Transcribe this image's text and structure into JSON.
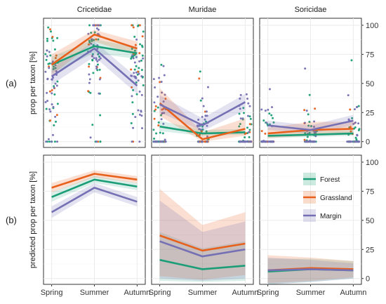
{
  "figure": {
    "row_tags": [
      "(a)",
      "(b)"
    ],
    "facets": [
      "Cricetidae",
      "Muridae",
      "Soricidae"
    ],
    "colors": {
      "Forest": "#1b9e77",
      "Grassland": "#e7601c",
      "Margin": "#7570b3"
    },
    "legend": {
      "entries": [
        "Forest",
        "Grassland",
        "Margin"
      ]
    }
  },
  "chart_data": [
    {
      "type": "scatter",
      "row": "(a)",
      "ylabel": "prop per taxon [%]",
      "categories": [
        "Spring",
        "Summer",
        "Autumn"
      ],
      "y_ticks": [
        0,
        25,
        50,
        75,
        100
      ],
      "ylim": [
        -5,
        106
      ],
      "grid": true,
      "facets": [
        {
          "name": "Cricetidae",
          "series": [
            {
              "name": "Forest",
              "values": [
                66,
                82,
                76
              ],
              "ci_low": [
                59,
                76,
                71
              ],
              "ci_high": [
                73,
                88,
                81
              ]
            },
            {
              "name": "Grassland",
              "values": [
                66,
                92,
                80
              ],
              "ci_low": [
                57,
                86,
                74
              ],
              "ci_high": [
                75,
                96,
                86
              ]
            },
            {
              "name": "Margin",
              "values": [
                56,
                80,
                48
              ],
              "ci_low": [
                49,
                73,
                41
              ],
              "ci_high": [
                63,
                86,
                55
              ]
            }
          ]
        },
        {
          "name": "Muridae",
          "series": [
            {
              "name": "Forest",
              "values": [
                13,
                7,
                8
              ],
              "ci_low": [
                9,
                5,
                6
              ],
              "ci_high": [
                18,
                10,
                11
              ]
            },
            {
              "name": "Grassland",
              "values": [
                33,
                2,
                11
              ],
              "ci_low": [
                22,
                0,
                5
              ],
              "ci_high": [
                46,
                8,
                20
              ]
            },
            {
              "name": "Margin",
              "values": [
                32,
                14,
                34
              ],
              "ci_low": [
                25,
                9,
                27
              ],
              "ci_high": [
                40,
                20,
                41
              ]
            }
          ]
        },
        {
          "name": "Soricidae",
          "series": [
            {
              "name": "Forest",
              "values": [
                5,
                6,
                7
              ],
              "ci_low": [
                3,
                4,
                5
              ],
              "ci_high": [
                8,
                9,
                10
              ]
            },
            {
              "name": "Grassland",
              "values": [
                7,
                10,
                11
              ],
              "ci_low": [
                3,
                5,
                6
              ],
              "ci_high": [
                12,
                17,
                17
              ]
            },
            {
              "name": "Margin",
              "values": [
                14,
                10,
                18
              ],
              "ci_low": [
                10,
                7,
                14
              ],
              "ci_high": [
                18,
                14,
                23
              ]
            }
          ]
        }
      ]
    },
    {
      "type": "line",
      "row": "(b)",
      "ylabel": "predicted prop per taxon [%]",
      "categories": [
        "Spring",
        "Summer",
        "Autumn"
      ],
      "y_ticks": [
        0,
        25,
        50,
        75,
        100
      ],
      "ylim": [
        -5,
        106
      ],
      "grid": true,
      "legend_position": "inside-right",
      "facets": [
        {
          "name": "Cricetidae",
          "series": [
            {
              "name": "Forest",
              "values": [
                70,
                85,
                79
              ],
              "ci_low": [
                66,
                82,
                76
              ],
              "ci_high": [
                74,
                88,
                82
              ]
            },
            {
              "name": "Grassland",
              "values": [
                78,
                90,
                85
              ],
              "ci_low": [
                74,
                87,
                82
              ],
              "ci_high": [
                82,
                93,
                88
              ]
            },
            {
              "name": "Margin",
              "values": [
                57,
                78,
                66
              ],
              "ci_low": [
                52,
                74,
                62
              ],
              "ci_high": [
                62,
                82,
                70
              ]
            }
          ]
        },
        {
          "name": "Muridae",
          "series": [
            {
              "name": "Forest",
              "values": [
                16,
                8,
                11
              ],
              "ci_low": [
                -2,
                -3,
                -2
              ],
              "ci_high": [
                40,
                26,
                32
              ]
            },
            {
              "name": "Grassland",
              "values": [
                37,
                24,
                30
              ],
              "ci_low": [
                2,
                -1,
                3
              ],
              "ci_high": [
                77,
                46,
                57
              ]
            },
            {
              "name": "Margin",
              "values": [
                32,
                19,
                25
              ],
              "ci_low": [
                0,
                -2,
                0
              ],
              "ci_high": [
                67,
                40,
                49
              ]
            }
          ]
        },
        {
          "name": "Soricidae",
          "series": [
            {
              "name": "Forest",
              "values": [
                6,
                8,
                7
              ],
              "ci_low": [
                -5,
                -3,
                0
              ],
              "ci_high": [
                17,
                17,
                15
              ]
            },
            {
              "name": "Grassland",
              "values": [
                7,
                9,
                8
              ],
              "ci_low": [
                -4,
                -2,
                1
              ],
              "ci_high": [
                20,
                18,
                15
              ]
            },
            {
              "name": "Margin",
              "values": [
                7,
                8,
                7
              ],
              "ci_low": [
                -5,
                -3,
                0
              ],
              "ci_high": [
                18,
                16,
                13
              ]
            }
          ]
        }
      ]
    }
  ]
}
